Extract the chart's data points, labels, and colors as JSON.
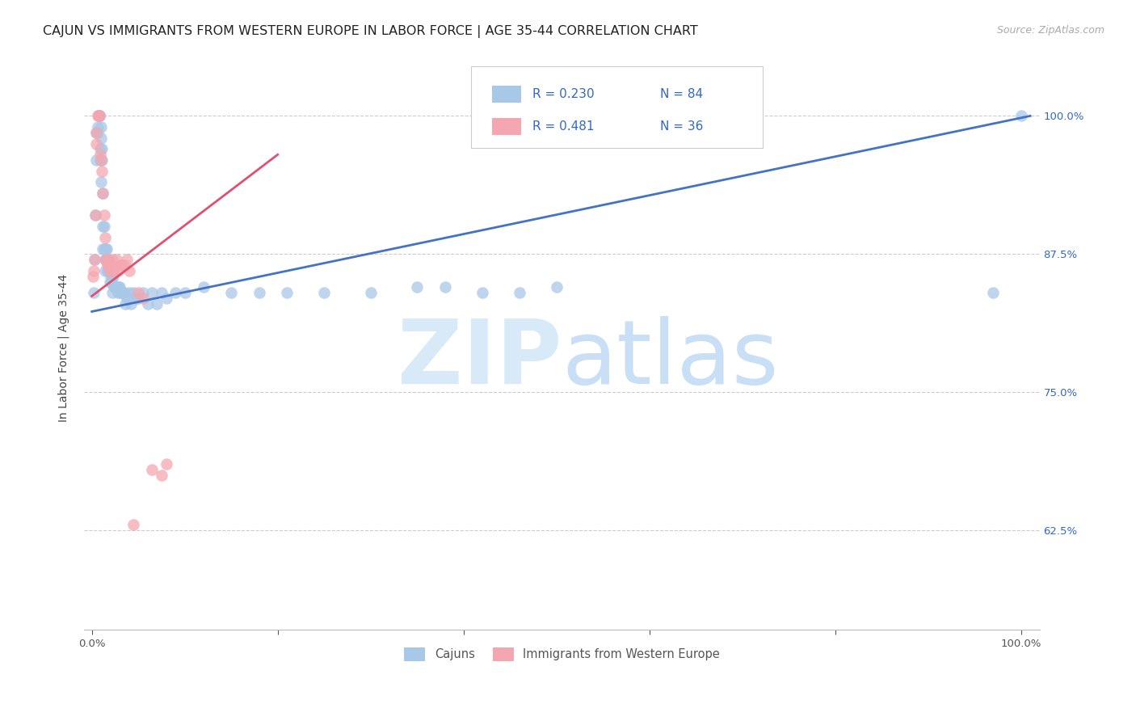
{
  "title": "CAJUN VS IMMIGRANTS FROM WESTERN EUROPE IN LABOR FORCE | AGE 35-44 CORRELATION CHART",
  "source": "Source: ZipAtlas.com",
  "ylabel": "In Labor Force | Age 35-44",
  "yticks": [
    0.625,
    0.75,
    0.875,
    1.0
  ],
  "ytick_labels": [
    "62.5%",
    "75.0%",
    "87.5%",
    "100.0%"
  ],
  "xlim": [
    -0.008,
    1.02
  ],
  "ylim": [
    0.535,
    1.045
  ],
  "cajun_R": 0.23,
  "cajun_N": 84,
  "immigrant_R": 0.481,
  "immigrant_N": 36,
  "cajun_color": "#a8c8e8",
  "cajun_line_color": "#4472c4",
  "immigrant_color": "#f4a7b0",
  "immigrant_line_color": "#e05070",
  "watermark_zip": "ZIP",
  "watermark_atlas": "atlas",
  "watermark_color": "#ddeeff",
  "title_fontsize": 11.5,
  "axis_label_fontsize": 10,
  "tick_fontsize": 9.5,
  "source_fontsize": 9,
  "legend_text_color": "#3366cc",
  "cajun_x": [
    0.002,
    0.003,
    0.004,
    0.005,
    0.005,
    0.006,
    0.006,
    0.007,
    0.007,
    0.008,
    0.008,
    0.008,
    0.009,
    0.009,
    0.01,
    0.01,
    0.01,
    0.01,
    0.011,
    0.011,
    0.012,
    0.012,
    0.012,
    0.013,
    0.013,
    0.014,
    0.014,
    0.015,
    0.015,
    0.015,
    0.016,
    0.016,
    0.017,
    0.017,
    0.018,
    0.018,
    0.019,
    0.019,
    0.02,
    0.02,
    0.021,
    0.021,
    0.022,
    0.022,
    0.023,
    0.024,
    0.025,
    0.026,
    0.027,
    0.028,
    0.029,
    0.03,
    0.031,
    0.032,
    0.033,
    0.035,
    0.036,
    0.038,
    0.04,
    0.042,
    0.045,
    0.048,
    0.05,
    0.055,
    0.06,
    0.065,
    0.07,
    0.075,
    0.08,
    0.09,
    0.1,
    0.12,
    0.15,
    0.18,
    0.21,
    0.25,
    0.3,
    0.35,
    0.38,
    0.42,
    0.46,
    0.5,
    0.97,
    1.0
  ],
  "cajun_y": [
    0.84,
    0.87,
    0.91,
    0.96,
    0.985,
    0.985,
    0.99,
    1.0,
    1.0,
    1.0,
    1.0,
    1.0,
    0.97,
    0.96,
    0.99,
    0.98,
    0.96,
    0.94,
    0.97,
    0.96,
    0.93,
    0.9,
    0.88,
    0.9,
    0.88,
    0.87,
    0.86,
    0.87,
    0.87,
    0.88,
    0.87,
    0.88,
    0.87,
    0.86,
    0.87,
    0.86,
    0.85,
    0.86,
    0.86,
    0.855,
    0.86,
    0.85,
    0.855,
    0.84,
    0.855,
    0.845,
    0.845,
    0.845,
    0.845,
    0.84,
    0.845,
    0.845,
    0.84,
    0.84,
    0.84,
    0.84,
    0.83,
    0.835,
    0.84,
    0.83,
    0.84,
    0.835,
    0.835,
    0.84,
    0.83,
    0.84,
    0.83,
    0.84,
    0.835,
    0.84,
    0.84,
    0.845,
    0.84,
    0.84,
    0.84,
    0.84,
    0.84,
    0.845,
    0.845,
    0.84,
    0.84,
    0.845,
    0.84,
    1.0
  ],
  "immigrant_x": [
    0.001,
    0.002,
    0.003,
    0.004,
    0.005,
    0.005,
    0.006,
    0.007,
    0.008,
    0.009,
    0.01,
    0.011,
    0.012,
    0.013,
    0.014,
    0.015,
    0.016,
    0.017,
    0.018,
    0.019,
    0.02,
    0.022,
    0.024,
    0.026,
    0.028,
    0.03,
    0.032,
    0.035,
    0.038,
    0.04,
    0.045,
    0.05,
    0.055,
    0.065,
    0.075,
    0.08
  ],
  "immigrant_y": [
    0.855,
    0.86,
    0.87,
    0.91,
    0.975,
    0.985,
    1.0,
    1.0,
    1.0,
    0.965,
    0.96,
    0.95,
    0.93,
    0.91,
    0.89,
    0.87,
    0.87,
    0.865,
    0.865,
    0.86,
    0.86,
    0.87,
    0.86,
    0.87,
    0.86,
    0.865,
    0.865,
    0.865,
    0.87,
    0.86,
    0.63,
    0.84,
    0.835,
    0.68,
    0.675,
    0.685
  ]
}
